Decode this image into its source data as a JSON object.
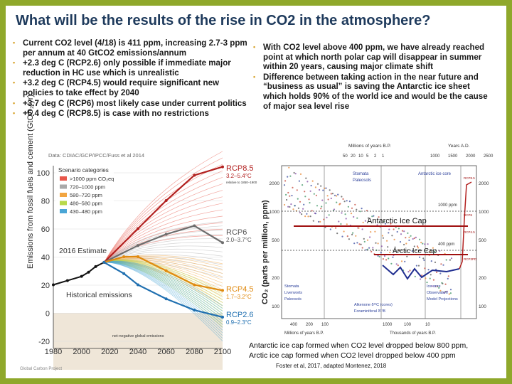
{
  "title": "What will be the results of the rise in CO2 in the atmosphere?",
  "left_bullets": [
    "Current CO2 level (4/18) is 411 ppm, increasing 2.7-3 ppm per annum at 40 GtCO2 emissions/annum",
    "+2.3 deg C (RCP2.6) only possible if immediate major reduction in HC use which is unrealistic",
    "+3.2 deg C (RCP4.5) would require significant new policies to take effect by 2040",
    "+3.7 deg C (RCP6) most likely case under current politics",
    "+5.4 deg C (RCP8.5) is case with no restrictions"
  ],
  "right_bullets": [
    "With CO2 level above 400 ppm, we have already reached point at which north polar cap will disappear in summer within 20 years, causing major climate shift",
    "Difference between taking action in the near future and “business as usual” is saving the Antarctic ice sheet which holds 90% of the world ice and would be the cause of major sea level rise"
  ],
  "figure_left": {
    "source": "Data: CDIAC/GCP/IPCC/Fuss et al 2014",
    "y_label": "Emissions from fossil fuels and cement (GtCO₂/yr)",
    "yticks": [
      100,
      80,
      60,
      40,
      20,
      0,
      -20
    ],
    "xticks": [
      1980,
      2000,
      2020,
      2040,
      2060,
      2080,
      2100
    ],
    "legend_title": "Scenario categories",
    "legend": [
      ">1000 ppm CO₂eq",
      "720–1000 ppm",
      "580–720 ppm",
      "480–580 ppm",
      "430–480 ppm"
    ],
    "estimate": "2016 Estimate",
    "historical": "Historical emissions",
    "negative": "net-negative global emissions",
    "scenarios": [
      {
        "name": "RCP8.5",
        "range": "3.2–5.4°C",
        "note": "relative to 1850–1900"
      },
      {
        "name": "RCP6",
        "range": "2.0–3.7°C"
      },
      {
        "name": "RCP4.5",
        "range": "1.7–3.2°C"
      },
      {
        "name": "RCP2.6",
        "range": "0.9–2.3°C"
      }
    ],
    "credit": "Global Carbon Project"
  },
  "figure_right": {
    "top_label_left": "Millions of years B.P.",
    "top_label_right": "Years A.D.",
    "top_ticks_left": [
      50,
      20,
      10,
      5,
      2,
      1
    ],
    "top_ticks_right": [
      1000,
      1500,
      2000,
      2500
    ],
    "y_label": "CO₂ (parts per million, ppm)",
    "yticks": [
      2000,
      1000,
      500,
      200,
      100
    ],
    "bottom_ticks_left": [
      400,
      200,
      100
    ],
    "bottom_ticks_mid": [
      1000,
      100,
      10
    ],
    "bottom_label_left": "Millions of years B.P.",
    "bottom_label_mid": "Thousands of years B.P.",
    "proxies": [
      "Stomata",
      "Paleosols",
      "Antarctic ice core"
    ],
    "line_1000": "1000 ppm",
    "line_400": "400 ppm",
    "antarctic": "Antarctic Ice Cap",
    "arctic": "Arctic Ice Cap",
    "bottom_proxies": [
      "Stomata",
      "Liverworts",
      "Paleosols",
      "Alkenone δ¹³C (cores)",
      "Foraminiferal δ¹¹B",
      "Ice core",
      "Observation",
      "Model Projections"
    ],
    "rcp": [
      "RCP8.5",
      "RCP6",
      "RCP4.5",
      "RCP3PD"
    ]
  },
  "captions": [
    "Antarctic ice cap formed when CO2 level dropped below 800 ppm,",
    "Arctic ice cap formed when CO2 level dropped below 400 ppm"
  ],
  "citation": "Foster et al, 2017, adapted Montenez, 2018"
}
